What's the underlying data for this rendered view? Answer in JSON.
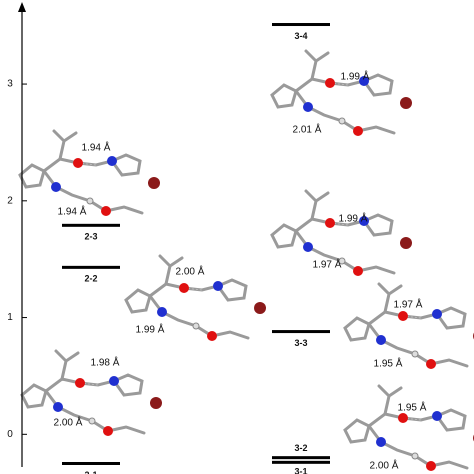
{
  "chart_data": {
    "type": "levels",
    "categories": [
      "2-1",
      "2-2",
      "2-3",
      "3-1",
      "3-2",
      "3-3",
      "3-4"
    ],
    "values": [
      -0.25,
      1.43,
      1.79,
      -0.24,
      -0.2,
      0.88,
      3.51
    ],
    "ylim": [
      -0.28,
      3.72
    ],
    "yticks": [
      0,
      1,
      2,
      3
    ],
    "color": "#000000",
    "annotations": [
      "1.94 Å",
      "1.94 Å",
      "2.00 Å",
      "1.99 Å",
      "1.98 Å",
      "2.00 Å",
      "1.99 Å",
      "2.01 Å",
      "1.99 Å",
      "1.97 Å",
      "1.97 Å",
      "1.95 Å",
      "1.95 Å",
      "2.00 Å"
    ]
  }
}
